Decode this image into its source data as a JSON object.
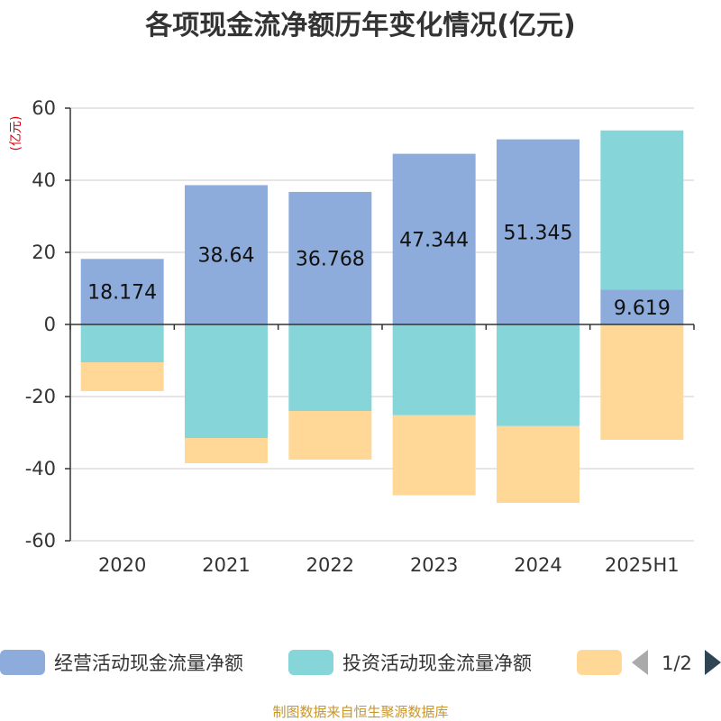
{
  "chart_data": {
    "type": "bar",
    "stacked": true,
    "title": "各项现金流净额历年变化情况(亿元)",
    "unit_label": "(亿元)",
    "categories": [
      "2020",
      "2021",
      "2022",
      "2023",
      "2024",
      "2025H1"
    ],
    "ylim": [
      -60,
      60
    ],
    "yticks": [
      60,
      40,
      20,
      0,
      -20,
      -40,
      -60
    ],
    "grid": true,
    "legend_position": "bottom",
    "series": [
      {
        "name": "经营活动现金流量净额",
        "color": "#8eacdb",
        "values": [
          18.174,
          38.64,
          36.768,
          47.344,
          51.345,
          9.619
        ],
        "labels": [
          "18.174",
          "38.64",
          "36.768",
          "47.344",
          "51.345",
          "9.619"
        ]
      },
      {
        "name": "投资活动现金流量净额",
        "color": "#86d5d8",
        "values": [
          -10.5,
          -31.5,
          -24.0,
          -25.2,
          -28.2,
          44.2
        ]
      },
      {
        "name": "",
        "color": "#ffd898",
        "values": [
          -8.0,
          -7.0,
          -13.5,
          -22.2,
          -21.3,
          -32.0
        ]
      }
    ]
  },
  "legend": {
    "page_indicator": "1/2"
  },
  "footer": {
    "source": "制图数据来自恒生聚源数据库"
  }
}
